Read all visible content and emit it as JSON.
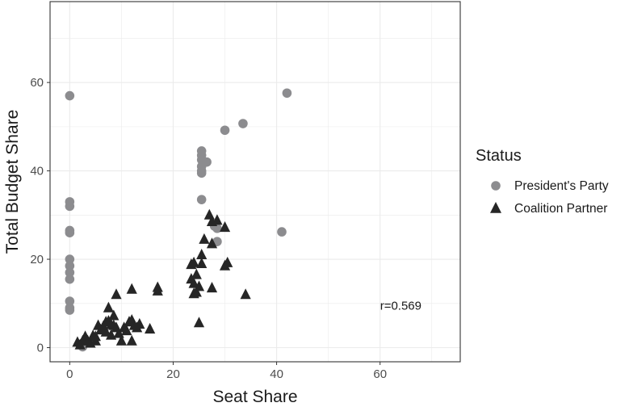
{
  "chart_data": {
    "type": "scatter",
    "xlabel": "Seat Share",
    "ylabel": "Total Budget Share",
    "xlim": [
      -3.8,
      75.5
    ],
    "ylim": [
      -3.2,
      78.3
    ],
    "x_ticks": [
      0,
      20,
      40,
      60
    ],
    "y_ticks": [
      0,
      20,
      40,
      60
    ],
    "grid": true,
    "legend_title": "Status",
    "legend_position": "right",
    "annotation": "r=0.569",
    "annotation_pos": {
      "x": 60,
      "y": 9.5
    },
    "series": [
      {
        "name": "President's Party",
        "marker": "circle",
        "color": "#8c8c8f",
        "points": [
          [
            0,
            57
          ],
          [
            0,
            33
          ],
          [
            0,
            32
          ],
          [
            0,
            26.5
          ],
          [
            0,
            26
          ],
          [
            0,
            20
          ],
          [
            0,
            18.5
          ],
          [
            0,
            17
          ],
          [
            0,
            15.5
          ],
          [
            0,
            10.5
          ],
          [
            0,
            9
          ],
          [
            0,
            8.5
          ],
          [
            2.3,
            0.5
          ],
          [
            2.5,
            0.2
          ],
          [
            25.5,
            44.5
          ],
          [
            25.5,
            43.5
          ],
          [
            25.5,
            42.5
          ],
          [
            25.5,
            41
          ],
          [
            25.5,
            40
          ],
          [
            25.5,
            39.5
          ],
          [
            26.5,
            42
          ],
          [
            25.5,
            33.5
          ],
          [
            28,
            27.5
          ],
          [
            28.5,
            27
          ],
          [
            28.5,
            24
          ],
          [
            30,
            49.2
          ],
          [
            33.5,
            50.7
          ],
          [
            41,
            26.2
          ],
          [
            42,
            57.6
          ]
        ]
      },
      {
        "name": "Coalition Partner",
        "marker": "triangle",
        "color": "#262626",
        "points": [
          [
            1.5,
            1.2
          ],
          [
            2,
            0.6
          ],
          [
            2.5,
            1.5
          ],
          [
            3,
            2.5
          ],
          [
            3.5,
            1.5
          ],
          [
            4,
            1.0
          ],
          [
            4.5,
            2.7
          ],
          [
            5,
            2.5
          ],
          [
            5,
            1.5
          ],
          [
            5.5,
            5.0
          ],
          [
            6,
            4.0
          ],
          [
            6.5,
            4.8
          ],
          [
            7,
            3.5
          ],
          [
            7,
            5.8
          ],
          [
            7.5,
            9.0
          ],
          [
            7.5,
            6.0
          ],
          [
            8,
            5.2
          ],
          [
            8,
            2.8
          ],
          [
            8.5,
            7.2
          ],
          [
            8.5,
            5.0
          ],
          [
            9,
            12.0
          ],
          [
            9,
            4.5
          ],
          [
            9.5,
            3.2
          ],
          [
            10,
            1.5
          ],
          [
            10.5,
            4.5
          ],
          [
            11,
            3.8
          ],
          [
            11.5,
            5.8
          ],
          [
            12,
            6.2
          ],
          [
            12,
            1.5
          ],
          [
            12,
            13.2
          ],
          [
            12.5,
            5.0
          ],
          [
            13,
            4.5
          ],
          [
            13.5,
            5.3
          ],
          [
            15.5,
            4.2
          ],
          [
            17,
            13.6
          ],
          [
            17,
            12.8
          ],
          [
            23.5,
            18.8
          ],
          [
            23.5,
            15.5
          ],
          [
            24,
            19.2
          ],
          [
            24,
            14.5
          ],
          [
            24.5,
            16.5
          ],
          [
            24.5,
            12.5
          ],
          [
            25,
            13.8
          ],
          [
            25,
            5.6
          ],
          [
            24,
            12.2
          ],
          [
            25.5,
            19.0
          ],
          [
            26,
            24.5
          ],
          [
            27,
            30.0
          ],
          [
            27.5,
            28.5
          ],
          [
            27.5,
            23.5
          ],
          [
            27.5,
            13.5
          ],
          [
            28.5,
            28.8
          ],
          [
            30,
            27.2
          ],
          [
            30.5,
            19.2
          ],
          [
            30,
            18.5
          ],
          [
            34,
            12.0
          ],
          [
            25.5,
            21.0
          ]
        ]
      }
    ]
  }
}
